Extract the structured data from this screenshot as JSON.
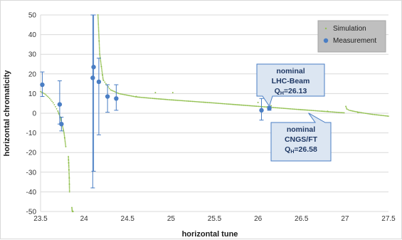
{
  "chart_data": {
    "type": "scatter",
    "xlabel": "horizontal tune",
    "ylabel": "horizontal chromaticity",
    "xlim": [
      23.5,
      27.5
    ],
    "ylim": [
      -50,
      50
    ],
    "x_ticks": [
      "23.5",
      "24",
      "24.5",
      "25",
      "25.5",
      "26",
      "26.5",
      "27",
      "27.5"
    ],
    "y_ticks": [
      "50",
      "40",
      "30",
      "20",
      "10",
      "0",
      "-10",
      "-20",
      "-30",
      "-40",
      "-50"
    ],
    "grid": "horizontal",
    "legend": {
      "position": "top-right",
      "entries": [
        {
          "label": "Simulation",
          "marker": "small-dot",
          "color": "#92c050"
        },
        {
          "label": "Measurement",
          "marker": "circle",
          "color": "#4a7ec4"
        }
      ]
    },
    "series": [
      {
        "name": "Simulation",
        "kind": "dotted-curve",
        "color": "#92c050",
        "branches": [
          {
            "x": [
              23.5,
              23.55,
              23.6,
              23.65,
              23.7,
              23.73,
              23.75,
              23.77,
              23.79
            ],
            "y": [
              11,
              9.8,
              7.8,
              5,
              1,
              -2.5,
              -6,
              -10,
              -17
            ]
          },
          {
            "x": [
              23.82,
              23.825,
              23.83,
              23.833
            ],
            "y": [
              -22,
              -27,
              -33,
              -40
            ]
          },
          {
            "x": [
              23.86,
              23.865,
              23.87,
              23.875
            ],
            "y": [
              -48,
              -50,
              -50,
              -50
            ]
          },
          {
            "x": [
              24.16,
              24.18,
              24.22,
              24.3,
              24.4,
              24.6,
              24.8,
              25.0,
              25.5,
              26.0,
              26.5,
              26.99
            ],
            "y": [
              50,
              30,
              17,
              12,
              10,
              8.3,
              7.5,
              6.8,
              5.2,
              3.5,
              1.8,
              0.2
            ]
          },
          {
            "x": [
              27.01,
              27.02,
              27.05,
              27.1,
              27.2,
              27.3,
              27.4,
              27.5
            ],
            "y": [
              3.5,
              2.2,
              1.5,
              1.0,
              0.2,
              -0.5,
              -1.0,
              -1.5
            ]
          }
        ],
        "scatter_points": {
          "x": [
            24.6,
            24.82,
            25.02,
            26.0,
            26.15,
            26.8,
            27.15
          ],
          "y": [
            8.5,
            10.5,
            10.5,
            5.5,
            3.8,
            1.0,
            0.3
          ]
        }
      },
      {
        "name": "Measurement",
        "kind": "points-with-errorbars",
        "color": "#4a7ec4",
        "points": [
          {
            "x": 23.52,
            "y": 14.5,
            "err_low": 6,
            "err_high": 6.5
          },
          {
            "x": 23.72,
            "y": 4.5,
            "err_low": 10,
            "err_high": 12
          },
          {
            "x": 23.74,
            "y": -5.5,
            "err_low": 3.5,
            "err_high": 3.5
          },
          {
            "x": 24.1,
            "y": 18,
            "err_low": 56,
            "err_high": 32
          },
          {
            "x": 24.11,
            "y": 23.5,
            "err_low": 53,
            "err_high": 26.5
          },
          {
            "x": 24.17,
            "y": 16,
            "err_low": 27,
            "err_high": 12
          },
          {
            "x": 24.27,
            "y": 8.5,
            "err_low": 8,
            "err_high": 6
          },
          {
            "x": 24.37,
            "y": 7.5,
            "err_low": 6,
            "err_high": 7
          },
          {
            "x": 26.04,
            "y": 1.5,
            "err_low": 5,
            "err_high": 6
          },
          {
            "x": 26.13,
            "y": 2.5,
            "err_low": 1,
            "err_high": 1
          }
        ]
      }
    ],
    "annotations": [
      {
        "line1": "nominal",
        "line2": "LHC-Beam",
        "q_prefix": "Q",
        "q_sub": "H",
        "q_value": "=26.13",
        "target_x": 26.13,
        "target_y": 2.5
      },
      {
        "line1": "nominal",
        "line2": "CNGS/FT",
        "q_prefix": "Q",
        "q_sub": "H",
        "q_value": "=26.58",
        "target_x": 26.58,
        "target_y": 1.2
      }
    ]
  },
  "colors": {
    "simulation": "#92c050",
    "measurement": "#4a7ec4",
    "callout_fill": "#dce6f2",
    "callout_border": "#4a7ec4",
    "callout_text": "#1f3864",
    "legend_fill": "#bfbfbf",
    "grid": "#d9d9d9"
  }
}
